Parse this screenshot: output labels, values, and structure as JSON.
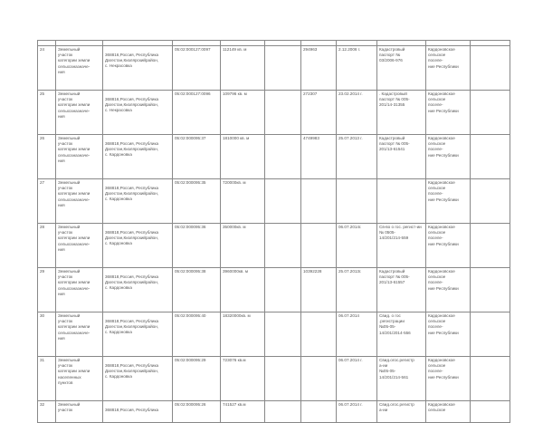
{
  "rows": [
    {
      "num": "24",
      "type": "Земельный\nучасток\nкатегории земли\nсельхозназначе-\nния",
      "address": "368816,Россия, Республика\nДагестан,Кизлярскийрайон,\nс. Некрасовка",
      "cadastral": "05:02:000127:0097",
      "area": "112149 кв. м",
      "value": "294963",
      "date": "2.12.2006 г.",
      "document": "Кадастровый\nпаспорт №\n03/2006-976",
      "owner": "Кардоновское\nсельское\nпоселе-\nние Республики"
    },
    {
      "num": "25",
      "type": "Земельный\nучасток\nкатегории земли\nсельхозназначе-\nния",
      "address": "368816,Россия, Республика\nДагестан,Кизлярскийрайон,\nс. Некрасовка",
      "cadastral": "05:02:000127:0096",
      "area": "109796 кв. м",
      "value": "272307",
      "date": "23.02.2014 г.",
      "document": ". Кадастровый\nпаспорт № 005-\n201/14-31355",
      "owner": "Кардоновское\nсельское\nпоселе-\nние Республики"
    },
    {
      "num": "26",
      "type": "Земельный\nучасток\nкатегории земли\nсельхозназначе-\nния",
      "address": "368818,Россия, Республика\nДагестан,Кизлярскийрайон,\nс. Кардоновка",
      "cadastral": "05:02:000095:37",
      "area": "1810000 кв. м",
      "value": "4749983",
      "date": "25.07.2013 г.",
      "document": "Кадастровый\nпаспорт № 005-\n201/13-61541",
      "owner": "Кардоновское\nсельское\nпоселе-\nние Республики"
    },
    {
      "num": "27",
      "type": "Земельный\nучасток\nкатегории земли\nсельхозназначе-\nния",
      "address": "368818,Россия, Республика\nДагестан,Кизлярскийрайон,\nс. Кардоновка",
      "cadastral": "05:02:000095:35",
      "area": "720000кв. м",
      "value": "",
      "date": "",
      "document": "",
      "owner": "Кардоновское\nсельское\nпоселе-\nние Республики"
    },
    {
      "num": "28",
      "type": "Земельный\nучасток\nкатегории земли\nсельхозназначе-\nния",
      "address": "368818,Россия, Республика\nДагестан,Кизлярскийрайон,\nс. Кардоновка",
      "cadastral": "05:02:000095:36",
      "area": "350000кв. м",
      "value": "",
      "date": "06.07.2014г.",
      "document": "Св-во о гос. регист-ии\n№ 0505-\n14/201/214-559",
      "owner": "Кардоновское\nсельское\nпоселе-\nние Республики"
    },
    {
      "num": "29",
      "type": "Земельный\nучасток\nкатегории земли\nсельхозназначе-\nния",
      "address": "368818,Россия, Республика\nДагестан,Кизлярскийрайон,\nс. Кардоновка",
      "cadastral": "05:02:000095:38",
      "area": "3960000кв. м",
      "value": "10392228",
      "date": "25.07.2013г.",
      "document": "Кадастровый\nпаспорт № 005-\n201/13-61557",
      "owner": "Кардоновское\nсельское\nпоселе-\nние Республики"
    },
    {
      "num": "30",
      "type": "Земельный\nучасток\nкатегории земли\nсельхозназначе-\nния",
      "address": "368818,Россия, Республика\nДагестан,Кизлярскийрайон,\nс. Кардоновка",
      "cadastral": "05:02:000095:40",
      "area": "18320000кв. м",
      "value": "",
      "date": "06.07.2014",
      "document": "Свид. о гос\n.регистрации\n№05-05-\n14/201/2014-556",
      "owner": "Кардоновское\nсельское\nпоселе-\nние Республики"
    },
    {
      "num": "31",
      "type": "Земельный\nучасток\nкатегории земли\nнаселенных\nпунктов",
      "address": "368818,Россия, Республика\nДагестан,Кизлярскийрайон,\nс. Кардоновка",
      "cadastral": "05:02:000095:29",
      "area": "723076 кв.м",
      "value": "",
      "date": "06.07.2014 г.",
      "document": "Свид.огос.регистр\nа-ии\n№05-05-\n14/201/214-561",
      "owner": "Кардоновское\nсельское\nпоселе-\nние Республики"
    },
    {
      "num": "32",
      "type": "Земельный\nучасток",
      "address": "368818,Россия, Республика",
      "cadastral": "05:02:000095:26",
      "area": "741527 кв.м",
      "value": "",
      "date": "06.07.2014 г.",
      "document": "Свид.огос.регистр\nа-ии",
      "owner": "Кардоновское\nсельское"
    }
  ]
}
